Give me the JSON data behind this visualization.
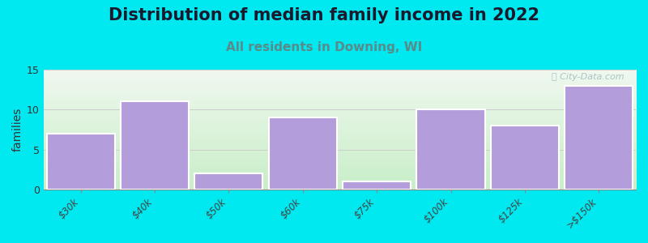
{
  "title": "Distribution of median family income in 2022",
  "subtitle": "All residents in Downing, WI",
  "categories": [
    "$30k",
    "$40k",
    "$50k",
    "$60k",
    "$75k",
    "$100k",
    "$125k",
    ">$150k"
  ],
  "values": [
    7,
    11,
    2,
    9,
    1,
    10,
    8,
    13
  ],
  "bar_color": "#b39ddb",
  "bar_edge_color": "white",
  "background_color": "#00e8f0",
  "plot_bg_top": "#eaf5ea",
  "plot_bg_bottom": "#c8eec8",
  "ylabel": "families",
  "ylim": [
    0,
    15
  ],
  "yticks": [
    0,
    5,
    10,
    15
  ],
  "title_fontsize": 15,
  "title_color": "#1a1a2e",
  "subtitle_fontsize": 11,
  "subtitle_color": "#5a8a8a",
  "watermark": "ⓘ City-Data.com",
  "watermark_color": "#a0c0c0"
}
